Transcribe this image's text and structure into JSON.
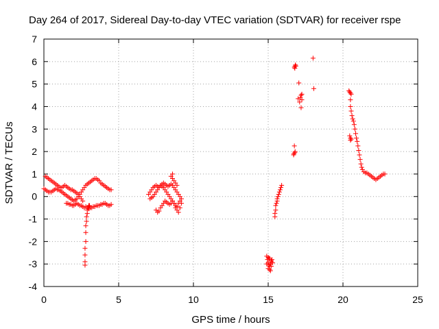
{
  "chart_data": {
    "type": "scatter",
    "title": "Day 264 of 2017, Sidereal Day-to-day VTEC variation (SDTVAR) for receiver rspe",
    "xlabel": "GPS time / hours",
    "ylabel": "SDTVAR / TECUs",
    "xlim": [
      0,
      25
    ],
    "ylim": [
      -4,
      7
    ],
    "xticks": [
      0,
      5,
      10,
      15,
      20,
      25
    ],
    "yticks": [
      -4,
      -3,
      -2,
      -1,
      0,
      1,
      2,
      3,
      4,
      5,
      6,
      7
    ],
    "grid": true,
    "marker": "+",
    "color": "#ff0000",
    "series": [
      {
        "name": "SDTVAR",
        "x": [
          0.0,
          0.1,
          0.2,
          0.3,
          0.4,
          0.5,
          0.6,
          0.7,
          0.8,
          0.9,
          1.0,
          1.1,
          1.2,
          1.3,
          1.4,
          1.5,
          1.6,
          1.7,
          1.8,
          1.9,
          2.0,
          2.1,
          2.2,
          2.3,
          2.4,
          2.5,
          2.6,
          2.7,
          2.8,
          2.9,
          3.0,
          3.1,
          3.2,
          3.3,
          3.4,
          3.5,
          3.6,
          3.7,
          3.8,
          3.9,
          4.0,
          4.1,
          4.2,
          4.3,
          4.4,
          4.5,
          0.1,
          0.2,
          0.3,
          0.4,
          0.5,
          0.6,
          0.7,
          0.8,
          0.9,
          1.0,
          1.1,
          1.2,
          1.3,
          1.4,
          1.5,
          1.6,
          1.7,
          1.8,
          1.9,
          2.0,
          2.1,
          2.2,
          2.3,
          2.4,
          2.5,
          2.6,
          1.5,
          1.6,
          1.7,
          1.8,
          1.9,
          2.0,
          2.1,
          2.2,
          2.3,
          2.4,
          2.5,
          2.6,
          2.7,
          2.8,
          2.9,
          3.0,
          3.1,
          3.2,
          3.3,
          3.4,
          3.5,
          3.6,
          3.7,
          3.8,
          3.9,
          4.0,
          4.1,
          4.2,
          4.3,
          4.4,
          4.5,
          2.75,
          2.75,
          2.75,
          2.75,
          2.8,
          2.8,
          2.8,
          2.85,
          2.85,
          2.9,
          2.9,
          2.95,
          3.0,
          3.0,
          3.05,
          7.0,
          7.1,
          7.2,
          7.3,
          7.4,
          7.5,
          7.6,
          7.7,
          7.8,
          7.9,
          8.0,
          8.1,
          8.2,
          8.3,
          8.4,
          8.5,
          8.6,
          8.7,
          8.8,
          8.9,
          9.0,
          9.1,
          9.2,
          7.1,
          7.2,
          7.3,
          7.4,
          7.5,
          7.6,
          7.7,
          7.8,
          7.9,
          8.0,
          8.1,
          8.2,
          8.3,
          8.4,
          8.5,
          8.6,
          8.7,
          8.8,
          8.9,
          9.0,
          9.1,
          7.5,
          7.6,
          7.7,
          7.8,
          7.9,
          8.0,
          8.1,
          8.2,
          8.3,
          8.4,
          8.5,
          8.6,
          8.7,
          8.8,
          8.9,
          9.0,
          9.1,
          9.2,
          8.5,
          8.6,
          8.6,
          8.7,
          8.8,
          8.9,
          14.9,
          14.95,
          15.0,
          15.05,
          15.1,
          15.15,
          15.2,
          15.25,
          14.9,
          15.0,
          15.1,
          15.2,
          15.3,
          15.0,
          15.1,
          15.2,
          15.15,
          15.05,
          15.45,
          15.45,
          15.5,
          15.5,
          15.55,
          15.6,
          15.6,
          15.65,
          15.7,
          15.75,
          15.8,
          15.85,
          15.9,
          16.7,
          16.72,
          16.75,
          16.78,
          16.8,
          16.75,
          16.8,
          16.82,
          16.78,
          16.85,
          17.0,
          17.05,
          17.1,
          17.15,
          17.2,
          17.25,
          17.2,
          17.25,
          18.0,
          18.05,
          20.4,
          20.45,
          20.5,
          20.55,
          20.5,
          20.5,
          20.55,
          20.6,
          20.65,
          20.7,
          20.75,
          20.8,
          20.85,
          20.9,
          20.95,
          21.0,
          21.05,
          21.1,
          21.15,
          21.2,
          21.25,
          21.3,
          21.4,
          21.5,
          21.6,
          21.7,
          21.8,
          21.9,
          22.0,
          22.1,
          22.2,
          22.3,
          22.4,
          22.5,
          22.6,
          22.7,
          22.8,
          20.45,
          20.5,
          20.5,
          20.55
        ],
        "y": [
          0.35,
          0.3,
          0.25,
          0.2,
          0.2,
          0.2,
          0.25,
          0.3,
          0.35,
          0.3,
          0.3,
          0.25,
          0.2,
          0.15,
          0.1,
          0.05,
          0.0,
          -0.05,
          -0.1,
          -0.15,
          -0.2,
          -0.15,
          -0.1,
          0.0,
          0.1,
          0.2,
          0.3,
          0.4,
          0.5,
          0.55,
          0.6,
          0.65,
          0.7,
          0.75,
          0.8,
          0.8,
          0.75,
          0.7,
          0.6,
          0.55,
          0.5,
          0.45,
          0.4,
          0.35,
          0.3,
          0.3,
          0.9,
          0.85,
          0.8,
          0.75,
          0.7,
          0.65,
          0.6,
          0.55,
          0.5,
          0.45,
          0.4,
          0.4,
          0.45,
          0.5,
          0.45,
          0.4,
          0.35,
          0.3,
          0.3,
          0.25,
          0.2,
          0.15,
          0.1,
          0.0,
          -0.1,
          -0.2,
          -0.3,
          -0.3,
          -0.35,
          -0.35,
          -0.4,
          -0.4,
          -0.35,
          -0.3,
          -0.35,
          -0.4,
          -0.4,
          -0.45,
          -0.5,
          -0.45,
          -0.5,
          -0.55,
          -0.5,
          -0.5,
          -0.45,
          -0.45,
          -0.4,
          -0.4,
          -0.4,
          -0.35,
          -0.35,
          -0.3,
          -0.3,
          -0.35,
          -0.4,
          -0.4,
          -0.35,
          -3.05,
          -2.9,
          -2.6,
          -2.3,
          -2.0,
          -1.6,
          -1.3,
          -1.1,
          -0.9,
          -0.75,
          -0.6,
          -0.5,
          -0.45,
          -0.4,
          -0.4,
          0.1,
          0.2,
          0.3,
          0.4,
          0.45,
          0.5,
          0.45,
          0.4,
          0.5,
          0.55,
          0.6,
          0.55,
          0.5,
          0.45,
          0.5,
          0.55,
          0.5,
          0.4,
          0.3,
          0.2,
          0.1,
          0.0,
          -0.1,
          -0.1,
          -0.05,
          0.0,
          0.1,
          0.2,
          0.3,
          0.4,
          0.5,
          0.45,
          0.4,
          0.3,
          0.2,
          0.1,
          0.0,
          -0.1,
          -0.2,
          -0.3,
          -0.4,
          -0.45,
          -0.3,
          -0.2,
          -0.6,
          -0.7,
          -0.65,
          -0.5,
          -0.4,
          -0.3,
          -0.2,
          -0.25,
          -0.3,
          -0.35,
          -0.3,
          -0.2,
          -0.3,
          -0.5,
          -0.6,
          -0.7,
          -0.5,
          -0.3,
          0.9,
          1.0,
          0.8,
          0.7,
          0.6,
          0.5,
          -2.65,
          -2.8,
          -2.95,
          -3.05,
          -3.1,
          -3.0,
          -2.9,
          -2.8,
          -3.0,
          -3.2,
          -3.25,
          -3.1,
          -2.95,
          -2.7,
          -2.75,
          -2.85,
          -3.3,
          -2.75,
          -0.9,
          -0.75,
          -0.6,
          -0.4,
          -0.3,
          -0.2,
          -0.1,
          0.0,
          0.1,
          0.2,
          0.3,
          0.4,
          0.5,
          1.85,
          1.9,
          2.25,
          1.95,
          2.0,
          5.75,
          5.8,
          5.85,
          5.7,
          5.8,
          4.35,
          5.05,
          4.2,
          4.4,
          4.5,
          4.3,
          3.95,
          4.55,
          6.15,
          4.8,
          4.7,
          4.65,
          4.6,
          4.55,
          4.3,
          4.0,
          3.8,
          3.6,
          3.45,
          3.35,
          3.2,
          3.0,
          2.8,
          2.6,
          2.45,
          2.25,
          2.05,
          1.85,
          1.65,
          1.45,
          1.3,
          1.2,
          1.1,
          1.05,
          1.05,
          1.0,
          0.95,
          0.9,
          0.85,
          0.8,
          0.75,
          0.8,
          0.85,
          0.9,
          0.95,
          1.0,
          1.0,
          2.7,
          2.6,
          2.5,
          2.55
        ]
      }
    ]
  }
}
